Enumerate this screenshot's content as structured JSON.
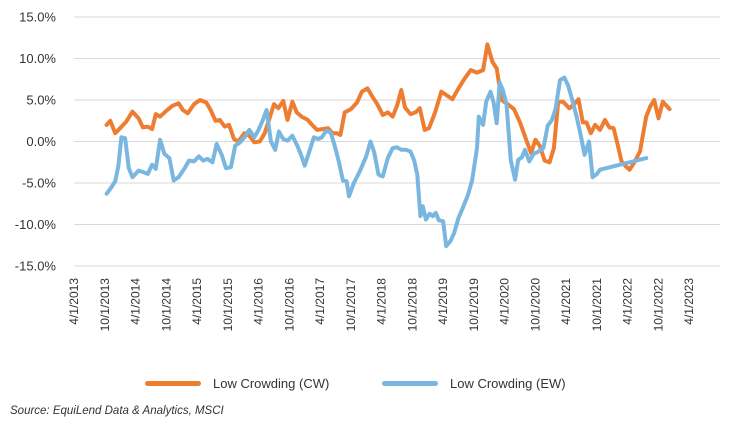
{
  "chart_data": {
    "type": "line",
    "title": "",
    "xlabel": "",
    "ylabel": "",
    "ylim": [
      -15,
      15
    ],
    "y_ticks": [
      15,
      10,
      5,
      0,
      -5,
      -10,
      -15
    ],
    "y_tick_labels": [
      "15.0%",
      "10.0%",
      "5.0%",
      "0.0%",
      "-5.0%",
      "-10.0%",
      "-15.0%"
    ],
    "x_tick_labels": [
      "4/1/2013",
      "10/1/2013",
      "4/1/2014",
      "10/1/2014",
      "4/1/2015",
      "10/1/2015",
      "4/1/2016",
      "10/1/2016",
      "4/1/2017",
      "10/1/2017",
      "4/1/2018",
      "10/1/2018",
      "4/1/2019",
      "10/1/2019",
      "4/1/2020",
      "10/1/2020",
      "4/1/2021",
      "10/1/2021",
      "4/1/2022",
      "10/1/2022",
      "4/1/2023"
    ],
    "x_range": [
      2013.25,
      2023.75
    ],
    "grid": true,
    "legend_position": "bottom",
    "series": [
      {
        "name": "Low Crowding (CW)",
        "color": "#ED7D31",
        "points": [
          [
            2013.78,
            2.0
          ],
          [
            2013.84,
            2.5
          ],
          [
            2013.92,
            1.0
          ],
          [
            2014.0,
            1.6
          ],
          [
            2014.1,
            2.4
          ],
          [
            2014.2,
            3.6
          ],
          [
            2014.3,
            2.8
          ],
          [
            2014.37,
            1.7
          ],
          [
            2014.45,
            1.8
          ],
          [
            2014.52,
            1.5
          ],
          [
            2014.58,
            3.3
          ],
          [
            2014.65,
            3.0
          ],
          [
            2014.75,
            3.7
          ],
          [
            2014.85,
            4.3
          ],
          [
            2014.95,
            4.6
          ],
          [
            2015.02,
            3.8
          ],
          [
            2015.1,
            3.4
          ],
          [
            2015.2,
            4.5
          ],
          [
            2015.3,
            5.0
          ],
          [
            2015.4,
            4.7
          ],
          [
            2015.47,
            3.8
          ],
          [
            2015.55,
            2.5
          ],
          [
            2015.62,
            2.6
          ],
          [
            2015.7,
            1.8
          ],
          [
            2015.77,
            2.0
          ],
          [
            2015.85,
            0.3
          ],
          [
            2015.92,
            0.0
          ],
          [
            2016.02,
            1.0
          ],
          [
            2016.1,
            0.7
          ],
          [
            2016.18,
            -0.1
          ],
          [
            2016.27,
            0.0
          ],
          [
            2016.35,
            1.0
          ],
          [
            2016.42,
            2.6
          ],
          [
            2016.5,
            4.5
          ],
          [
            2016.57,
            4.0
          ],
          [
            2016.65,
            4.9
          ],
          [
            2016.72,
            2.6
          ],
          [
            2016.8,
            4.8
          ],
          [
            2016.87,
            3.5
          ],
          [
            2016.95,
            3.0
          ],
          [
            2017.05,
            2.6
          ],
          [
            2017.12,
            2.0
          ],
          [
            2017.2,
            1.4
          ],
          [
            2017.3,
            1.5
          ],
          [
            2017.38,
            1.6
          ],
          [
            2017.45,
            1.0
          ],
          [
            2017.52,
            1.0
          ],
          [
            2017.58,
            0.8
          ],
          [
            2017.65,
            3.5
          ],
          [
            2017.75,
            3.9
          ],
          [
            2017.85,
            4.7
          ],
          [
            2017.93,
            6.0
          ],
          [
            2018.02,
            6.4
          ],
          [
            2018.1,
            5.4
          ],
          [
            2018.18,
            4.5
          ],
          [
            2018.27,
            3.2
          ],
          [
            2018.35,
            3.5
          ],
          [
            2018.43,
            3.0
          ],
          [
            2018.5,
            4.3
          ],
          [
            2018.57,
            6.2
          ],
          [
            2018.63,
            4.1
          ],
          [
            2018.72,
            3.3
          ],
          [
            2018.8,
            3.5
          ],
          [
            2018.87,
            4.0
          ],
          [
            2018.95,
            1.4
          ],
          [
            2019.02,
            1.6
          ],
          [
            2019.12,
            3.5
          ],
          [
            2019.22,
            6.0
          ],
          [
            2019.3,
            5.6
          ],
          [
            2019.4,
            5.1
          ],
          [
            2019.5,
            6.4
          ],
          [
            2019.6,
            7.6
          ],
          [
            2019.7,
            8.6
          ],
          [
            2019.8,
            8.3
          ],
          [
            2019.9,
            8.6
          ],
          [
            2019.97,
            11.7
          ],
          [
            2020.05,
            9.6
          ],
          [
            2020.12,
            8.8
          ],
          [
            2020.2,
            5.0
          ],
          [
            2020.3,
            4.5
          ],
          [
            2020.4,
            3.9
          ],
          [
            2020.5,
            2.3
          ],
          [
            2020.6,
            0.2
          ],
          [
            2020.68,
            -1.4
          ],
          [
            2020.75,
            0.2
          ],
          [
            2020.82,
            -0.5
          ],
          [
            2020.9,
            -2.3
          ],
          [
            2020.98,
            -2.5
          ],
          [
            2021.05,
            -0.8
          ],
          [
            2021.12,
            4.8
          ],
          [
            2021.2,
            4.8
          ],
          [
            2021.3,
            4.0
          ],
          [
            2021.38,
            4.5
          ],
          [
            2021.45,
            5.1
          ],
          [
            2021.52,
            2.3
          ],
          [
            2021.58,
            2.3
          ],
          [
            2021.65,
            1.0
          ],
          [
            2021.72,
            2.0
          ],
          [
            2021.8,
            1.4
          ],
          [
            2021.88,
            2.6
          ],
          [
            2021.95,
            1.7
          ],
          [
            2022.02,
            1.6
          ],
          [
            2022.08,
            -0.2
          ],
          [
            2022.15,
            -2.4
          ],
          [
            2022.22,
            -3.0
          ],
          [
            2022.28,
            -3.4
          ],
          [
            2022.35,
            -2.6
          ],
          [
            2022.45,
            -1.2
          ],
          [
            2022.55,
            3.0
          ],
          [
            2022.62,
            4.3
          ],
          [
            2022.68,
            5.0
          ],
          [
            2022.75,
            2.8
          ],
          [
            2022.82,
            4.8
          ],
          [
            2022.88,
            4.3
          ],
          [
            2022.93,
            3.9
          ]
        ]
      },
      {
        "name": "Low Crowding (EW)",
        "color": "#79B7E0",
        "points": [
          [
            2013.78,
            -6.3
          ],
          [
            2013.85,
            -5.6
          ],
          [
            2013.92,
            -4.8
          ],
          [
            2013.97,
            -3.0
          ],
          [
            2014.02,
            0.5
          ],
          [
            2014.08,
            0.4
          ],
          [
            2014.14,
            -3.2
          ],
          [
            2014.2,
            -4.3
          ],
          [
            2014.3,
            -3.5
          ],
          [
            2014.38,
            -3.7
          ],
          [
            2014.45,
            -3.9
          ],
          [
            2014.52,
            -2.8
          ],
          [
            2014.58,
            -3.3
          ],
          [
            2014.65,
            0.2
          ],
          [
            2014.72,
            -1.5
          ],
          [
            2014.8,
            -2.0
          ],
          [
            2014.87,
            -4.7
          ],
          [
            2014.95,
            -4.3
          ],
          [
            2015.05,
            -3.2
          ],
          [
            2015.12,
            -2.3
          ],
          [
            2015.2,
            -2.4
          ],
          [
            2015.28,
            -1.8
          ],
          [
            2015.35,
            -2.3
          ],
          [
            2015.42,
            -2.1
          ],
          [
            2015.5,
            -2.5
          ],
          [
            2015.57,
            -0.3
          ],
          [
            2015.65,
            -1.6
          ],
          [
            2015.72,
            -3.2
          ],
          [
            2015.8,
            -3.1
          ],
          [
            2015.87,
            -0.5
          ],
          [
            2015.95,
            -0.1
          ],
          [
            2016.03,
            0.6
          ],
          [
            2016.1,
            1.4
          ],
          [
            2016.18,
            0.5
          ],
          [
            2016.25,
            1.4
          ],
          [
            2016.32,
            2.6
          ],
          [
            2016.38,
            3.8
          ],
          [
            2016.45,
            0.0
          ],
          [
            2016.52,
            -1.0
          ],
          [
            2016.58,
            1.2
          ],
          [
            2016.65,
            0.3
          ],
          [
            2016.72,
            0.1
          ],
          [
            2016.8,
            0.7
          ],
          [
            2016.88,
            -0.5
          ],
          [
            2016.95,
            -1.8
          ],
          [
            2017.0,
            -2.9
          ],
          [
            2017.08,
            -1.1
          ],
          [
            2017.15,
            0.5
          ],
          [
            2017.22,
            0.3
          ],
          [
            2017.28,
            0.5
          ],
          [
            2017.35,
            1.3
          ],
          [
            2017.42,
            1.1
          ],
          [
            2017.48,
            -0.3
          ],
          [
            2017.55,
            -2.3
          ],
          [
            2017.62,
            -4.7
          ],
          [
            2017.68,
            -4.8
          ],
          [
            2017.72,
            -6.6
          ],
          [
            2017.8,
            -5.0
          ],
          [
            2017.9,
            -3.5
          ],
          [
            2018.0,
            -1.8
          ],
          [
            2018.07,
            0.0
          ],
          [
            2018.13,
            -1.3
          ],
          [
            2018.2,
            -4.0
          ],
          [
            2018.27,
            -4.2
          ],
          [
            2018.35,
            -2.0
          ],
          [
            2018.43,
            -0.8
          ],
          [
            2018.5,
            -0.7
          ],
          [
            2018.57,
            -1.0
          ],
          [
            2018.65,
            -1.0
          ],
          [
            2018.72,
            -1.2
          ],
          [
            2018.78,
            -2.3
          ],
          [
            2018.83,
            -4.0
          ],
          [
            2018.88,
            -9.0
          ],
          [
            2018.92,
            -7.8
          ],
          [
            2018.97,
            -9.4
          ],
          [
            2019.03,
            -8.7
          ],
          [
            2019.08,
            -9.0
          ],
          [
            2019.13,
            -8.6
          ],
          [
            2019.18,
            -9.5
          ],
          [
            2019.25,
            -9.6
          ],
          [
            2019.3,
            -12.6
          ],
          [
            2019.37,
            -12.0
          ],
          [
            2019.43,
            -11.0
          ],
          [
            2019.5,
            -9.2
          ],
          [
            2019.57,
            -8.0
          ],
          [
            2019.65,
            -6.5
          ],
          [
            2019.72,
            -4.7
          ],
          [
            2019.8,
            -0.8
          ],
          [
            2019.83,
            3.0
          ],
          [
            2019.9,
            2.0
          ],
          [
            2019.95,
            4.8
          ],
          [
            2020.02,
            6.0
          ],
          [
            2020.07,
            4.7
          ],
          [
            2020.12,
            2.2
          ],
          [
            2020.17,
            7.1
          ],
          [
            2020.22,
            6.2
          ],
          [
            2020.28,
            4.5
          ],
          [
            2020.35,
            -2.3
          ],
          [
            2020.42,
            -4.6
          ],
          [
            2020.47,
            -2.2
          ],
          [
            2020.53,
            -1.9
          ],
          [
            2020.58,
            -1.0
          ],
          [
            2020.65,
            -2.4
          ],
          [
            2020.72,
            -1.5
          ],
          [
            2020.8,
            -1.2
          ],
          [
            2020.88,
            -0.8
          ],
          [
            2020.95,
            1.9
          ],
          [
            2021.02,
            2.6
          ],
          [
            2021.08,
            4.0
          ],
          [
            2021.15,
            7.4
          ],
          [
            2021.22,
            7.7
          ],
          [
            2021.28,
            6.8
          ],
          [
            2021.35,
            5.0
          ],
          [
            2021.42,
            3.0
          ],
          [
            2021.48,
            1.0
          ],
          [
            2021.55,
            -1.6
          ],
          [
            2021.62,
            0.0
          ],
          [
            2021.68,
            -4.3
          ],
          [
            2021.75,
            -3.9
          ],
          [
            2021.8,
            -3.4
          ],
          [
            2022.55,
            -2.0
          ]
        ]
      }
    ],
    "legend": [
      "Low Crowding (CW)",
      "Low Crowding (EW)"
    ],
    "source": "Source: EquiLend Data & Analytics, MSCI"
  }
}
